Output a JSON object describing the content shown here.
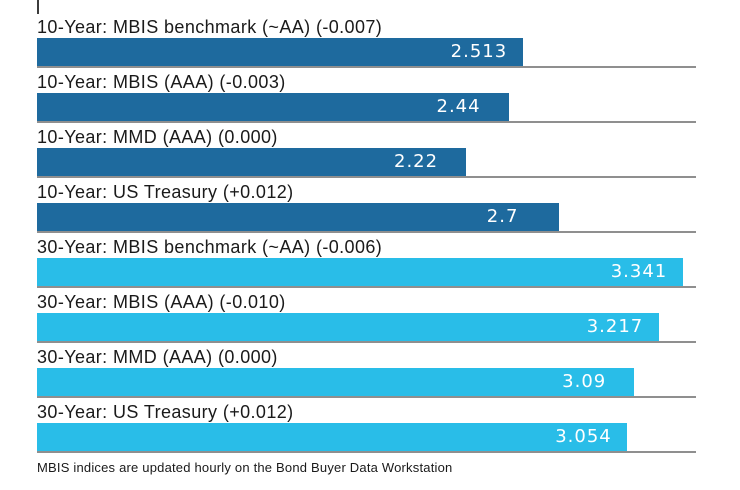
{
  "colors": {
    "dark_blue": "#1e6a9e",
    "light_blue": "#29bde8",
    "grid_line": "#8f8f8f",
    "axis_tick": "#3c3c3c",
    "label_text": "#1a1a1a",
    "value_text": "#ffffff"
  },
  "footer": {
    "note": "MBIS indices are updated hourly on the Bond Buyer Data Workstation"
  },
  "chart_data": {
    "type": "bar",
    "orientation": "horizontal",
    "axis_max": 3.41,
    "grid": "baseline-per-row",
    "value_labels": "inside-bar-near-right-end",
    "series": [
      {
        "name": "10-Year",
        "color_key": "dark_blue"
      },
      {
        "name": "30-Year",
        "color_key": "light_blue"
      }
    ],
    "rows": [
      {
        "label": "10-Year: MBIS benchmark (~AA) (-0.007)",
        "value": 2.513,
        "value_label": "2.513",
        "change": -0.007,
        "group": "10-Year",
        "color_key": "dark_blue"
      },
      {
        "label": "10-Year: MBIS (AAA) (-0.003)",
        "value": 2.44,
        "value_label": "2.44",
        "change": -0.003,
        "group": "10-Year",
        "color_key": "dark_blue"
      },
      {
        "label": "10-Year: MMD (AAA) (0.000)",
        "value": 2.22,
        "value_label": "2.22",
        "change": 0.0,
        "group": "10-Year",
        "color_key": "dark_blue"
      },
      {
        "label": "10-Year: US Treasury (+0.012)",
        "value": 2.7,
        "value_label": "2.7",
        "change": 0.012,
        "group": "10-Year",
        "color_key": "dark_blue"
      },
      {
        "label": "30-Year: MBIS benchmark (~AA) (-0.006)",
        "value": 3.341,
        "value_label": "3.341",
        "change": -0.006,
        "group": "30-Year",
        "color_key": "light_blue"
      },
      {
        "label": "30-Year: MBIS (AAA) (-0.010)",
        "value": 3.217,
        "value_label": "3.217",
        "change": -0.01,
        "group": "30-Year",
        "color_key": "light_blue"
      },
      {
        "label": "30-Year: MMD (AAA) (0.000)",
        "value": 3.09,
        "value_label": "3.09",
        "change": 0.0,
        "group": "30-Year",
        "color_key": "light_blue"
      },
      {
        "label": "30-Year: US Treasury (+0.012)",
        "value": 3.054,
        "value_label": "3.054",
        "change": 0.012,
        "group": "30-Year",
        "color_key": "light_blue"
      }
    ]
  }
}
